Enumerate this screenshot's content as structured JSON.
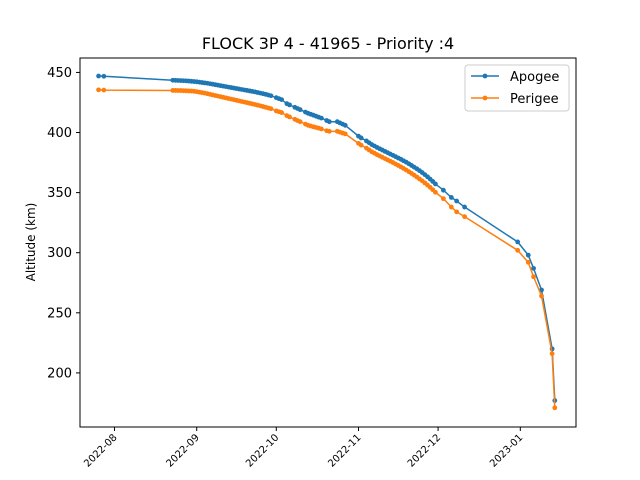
{
  "chart_data": {
    "type": "line",
    "title": "FLOCK 3P 4 - 41965 - Priority :4",
    "xlabel": "",
    "ylabel": "Altitude (km)",
    "x_ticks": [
      "2022-08",
      "2022-09",
      "2022-10",
      "2022-11",
      "2022-12",
      "2023-01"
    ],
    "y_ticks": [
      200,
      250,
      300,
      350,
      400,
      450
    ],
    "xlim": [
      "2022-07-19",
      "2023-01-22"
    ],
    "ylim": [
      155,
      462
    ],
    "grid": false,
    "legend_position": "top-right",
    "series": [
      {
        "name": "Apogee",
        "color": "#1f77b4",
        "points": [
          [
            "2022-07-26",
            447
          ],
          [
            "2022-07-28",
            446.8
          ],
          [
            "2022-08-23",
            443.5
          ],
          [
            "2022-08-24",
            443.4
          ],
          [
            "2022-08-25",
            443.3
          ],
          [
            "2022-08-26",
            443.2
          ],
          [
            "2022-08-27",
            443.1
          ],
          [
            "2022-08-28",
            443
          ],
          [
            "2022-08-29",
            442.8
          ],
          [
            "2022-08-30",
            442.6
          ],
          [
            "2022-08-31",
            442.4
          ],
          [
            "2022-09-01",
            442.2
          ],
          [
            "2022-09-02",
            441.9
          ],
          [
            "2022-09-03",
            441.6
          ],
          [
            "2022-09-04",
            441.3
          ],
          [
            "2022-09-05",
            441
          ],
          [
            "2022-09-06",
            440.6
          ],
          [
            "2022-09-07",
            440.2
          ],
          [
            "2022-09-08",
            439.8
          ],
          [
            "2022-09-09",
            439.4
          ],
          [
            "2022-09-10",
            439
          ],
          [
            "2022-09-11",
            438.6
          ],
          [
            "2022-09-12",
            438.2
          ],
          [
            "2022-09-13",
            437.8
          ],
          [
            "2022-09-14",
            437.4
          ],
          [
            "2022-09-15",
            437
          ],
          [
            "2022-09-16",
            436.6
          ],
          [
            "2022-09-17",
            436.2
          ],
          [
            "2022-09-18",
            435.8
          ],
          [
            "2022-09-19",
            435.4
          ],
          [
            "2022-09-20",
            435
          ],
          [
            "2022-09-21",
            434.6
          ],
          [
            "2022-09-22",
            434.2
          ],
          [
            "2022-09-23",
            433.8
          ],
          [
            "2022-09-24",
            433.3
          ],
          [
            "2022-09-25",
            432.8
          ],
          [
            "2022-09-26",
            432.3
          ],
          [
            "2022-09-27",
            431.8
          ],
          [
            "2022-09-28",
            431.2
          ],
          [
            "2022-09-29",
            430.6
          ],
          [
            "2022-10-01",
            429
          ],
          [
            "2022-10-02",
            428.2
          ],
          [
            "2022-10-03",
            427.4
          ],
          [
            "2022-10-05",
            424
          ],
          [
            "2022-10-06",
            423
          ],
          [
            "2022-10-08",
            421
          ],
          [
            "2022-10-09",
            420
          ],
          [
            "2022-10-10",
            419
          ],
          [
            "2022-10-12",
            417
          ],
          [
            "2022-10-13",
            416
          ],
          [
            "2022-10-14",
            415.2
          ],
          [
            "2022-10-15",
            414.4
          ],
          [
            "2022-10-16",
            413.6
          ],
          [
            "2022-10-17",
            412.8
          ],
          [
            "2022-10-18",
            412
          ],
          [
            "2022-10-20",
            410
          ],
          [
            "2022-10-21",
            409
          ],
          [
            "2022-10-24",
            409
          ],
          [
            "2022-10-25",
            408
          ],
          [
            "2022-10-26",
            407
          ],
          [
            "2022-10-27",
            406
          ],
          [
            "2022-11-01",
            397
          ],
          [
            "2022-11-02",
            395.5
          ],
          [
            "2022-11-04",
            393
          ],
          [
            "2022-11-05",
            391.5
          ],
          [
            "2022-11-06",
            390
          ],
          [
            "2022-11-07",
            388.8
          ],
          [
            "2022-11-08",
            387.6
          ],
          [
            "2022-11-09",
            386.5
          ],
          [
            "2022-11-10",
            385.4
          ],
          [
            "2022-11-11",
            384.3
          ],
          [
            "2022-11-12",
            383.2
          ],
          [
            "2022-11-13",
            382.1
          ],
          [
            "2022-11-14",
            381
          ],
          [
            "2022-11-15",
            379.9
          ],
          [
            "2022-11-16",
            378.8
          ],
          [
            "2022-11-17",
            377.7
          ],
          [
            "2022-11-18",
            376.5
          ],
          [
            "2022-11-19",
            375.3
          ],
          [
            "2022-11-20",
            374
          ],
          [
            "2022-11-21",
            372.6
          ],
          [
            "2022-11-22",
            371.2
          ],
          [
            "2022-11-23",
            369.8
          ],
          [
            "2022-11-24",
            368.3
          ],
          [
            "2022-11-25",
            366.7
          ],
          [
            "2022-11-26",
            365
          ],
          [
            "2022-11-27",
            363.2
          ],
          [
            "2022-11-28",
            361.3
          ],
          [
            "2022-11-29",
            359.3
          ],
          [
            "2022-11-30",
            357.2
          ],
          [
            "2022-12-03",
            352
          ],
          [
            "2022-12-06",
            346
          ],
          [
            "2022-12-08",
            343
          ],
          [
            "2022-12-11",
            338
          ],
          [
            "2022-12-31",
            309
          ],
          [
            "2023-01-04",
            298
          ],
          [
            "2023-01-06",
            287
          ],
          [
            "2023-01-09",
            269
          ],
          [
            "2023-01-13",
            220
          ],
          [
            "2023-01-14",
            177
          ]
        ]
      },
      {
        "name": "Perigee",
        "color": "#ff7f0e",
        "points": [
          [
            "2022-07-26",
            435.5
          ],
          [
            "2022-07-28",
            435.3
          ],
          [
            "2022-08-23",
            435
          ],
          [
            "2022-08-24",
            435
          ],
          [
            "2022-08-25",
            434.9
          ],
          [
            "2022-08-26",
            434.9
          ],
          [
            "2022-08-27",
            434.8
          ],
          [
            "2022-08-28",
            434.7
          ],
          [
            "2022-08-29",
            434.6
          ],
          [
            "2022-08-30",
            434.5
          ],
          [
            "2022-08-31",
            434.3
          ],
          [
            "2022-09-01",
            434
          ],
          [
            "2022-09-02",
            433.6
          ],
          [
            "2022-09-03",
            433.2
          ],
          [
            "2022-09-04",
            432.8
          ],
          [
            "2022-09-05",
            432.3
          ],
          [
            "2022-09-06",
            431.8
          ],
          [
            "2022-09-07",
            431.3
          ],
          [
            "2022-09-08",
            430.8
          ],
          [
            "2022-09-09",
            430.3
          ],
          [
            "2022-09-10",
            429.8
          ],
          [
            "2022-09-11",
            429.3
          ],
          [
            "2022-09-12",
            428.8
          ],
          [
            "2022-09-13",
            428.3
          ],
          [
            "2022-09-14",
            427.8
          ],
          [
            "2022-09-15",
            427.3
          ],
          [
            "2022-09-16",
            426.8
          ],
          [
            "2022-09-17",
            426.3
          ],
          [
            "2022-09-18",
            425.8
          ],
          [
            "2022-09-19",
            425.3
          ],
          [
            "2022-09-20",
            424.8
          ],
          [
            "2022-09-21",
            424.3
          ],
          [
            "2022-09-22",
            423.8
          ],
          [
            "2022-09-23",
            423.3
          ],
          [
            "2022-09-24",
            422.8
          ],
          [
            "2022-09-25",
            422.2
          ],
          [
            "2022-09-26",
            421.6
          ],
          [
            "2022-09-27",
            421
          ],
          [
            "2022-09-28",
            420.4
          ],
          [
            "2022-09-29",
            419.8
          ],
          [
            "2022-10-01",
            418
          ],
          [
            "2022-10-02",
            417.3
          ],
          [
            "2022-10-03",
            416.6
          ],
          [
            "2022-10-05",
            414
          ],
          [
            "2022-10-06",
            413
          ],
          [
            "2022-10-08",
            411
          ],
          [
            "2022-10-09",
            410
          ],
          [
            "2022-10-10",
            409
          ],
          [
            "2022-10-12",
            407
          ],
          [
            "2022-10-13",
            406
          ],
          [
            "2022-10-14",
            405.4
          ],
          [
            "2022-10-15",
            404.8
          ],
          [
            "2022-10-16",
            404.2
          ],
          [
            "2022-10-17",
            403.6
          ],
          [
            "2022-10-18",
            403
          ],
          [
            "2022-10-20",
            401.5
          ],
          [
            "2022-10-21",
            401
          ],
          [
            "2022-10-24",
            401
          ],
          [
            "2022-10-25",
            400.3
          ],
          [
            "2022-10-26",
            399.6
          ],
          [
            "2022-10-27",
            398.9
          ],
          [
            "2022-11-01",
            391
          ],
          [
            "2022-11-02",
            389.5
          ],
          [
            "2022-11-04",
            387
          ],
          [
            "2022-11-05",
            385.5
          ],
          [
            "2022-11-06",
            384
          ],
          [
            "2022-11-07",
            382.8
          ],
          [
            "2022-11-08",
            381.6
          ],
          [
            "2022-11-09",
            380.5
          ],
          [
            "2022-11-10",
            379.4
          ],
          [
            "2022-11-11",
            378.3
          ],
          [
            "2022-11-12",
            377.2
          ],
          [
            "2022-11-13",
            376.1
          ],
          [
            "2022-11-14",
            375
          ],
          [
            "2022-11-15",
            373.8
          ],
          [
            "2022-11-16",
            372.6
          ],
          [
            "2022-11-17",
            371.4
          ],
          [
            "2022-11-18",
            370.1
          ],
          [
            "2022-11-19",
            368.8
          ],
          [
            "2022-11-20",
            367.4
          ],
          [
            "2022-11-21",
            366
          ],
          [
            "2022-11-22",
            364.5
          ],
          [
            "2022-11-23",
            363
          ],
          [
            "2022-11-24",
            361.4
          ],
          [
            "2022-11-25",
            359.8
          ],
          [
            "2022-11-26",
            358.1
          ],
          [
            "2022-11-27",
            356.3
          ],
          [
            "2022-11-28",
            354.4
          ],
          [
            "2022-11-29",
            352.4
          ],
          [
            "2022-11-30",
            350.3
          ],
          [
            "2022-12-03",
            345
          ],
          [
            "2022-12-06",
            338
          ],
          [
            "2022-12-08",
            334
          ],
          [
            "2022-12-11",
            330
          ],
          [
            "2022-12-31",
            302
          ],
          [
            "2023-01-04",
            292
          ],
          [
            "2023-01-06",
            280
          ],
          [
            "2023-01-09",
            264
          ],
          [
            "2023-01-13",
            216
          ],
          [
            "2023-01-14",
            171
          ]
        ]
      }
    ]
  }
}
